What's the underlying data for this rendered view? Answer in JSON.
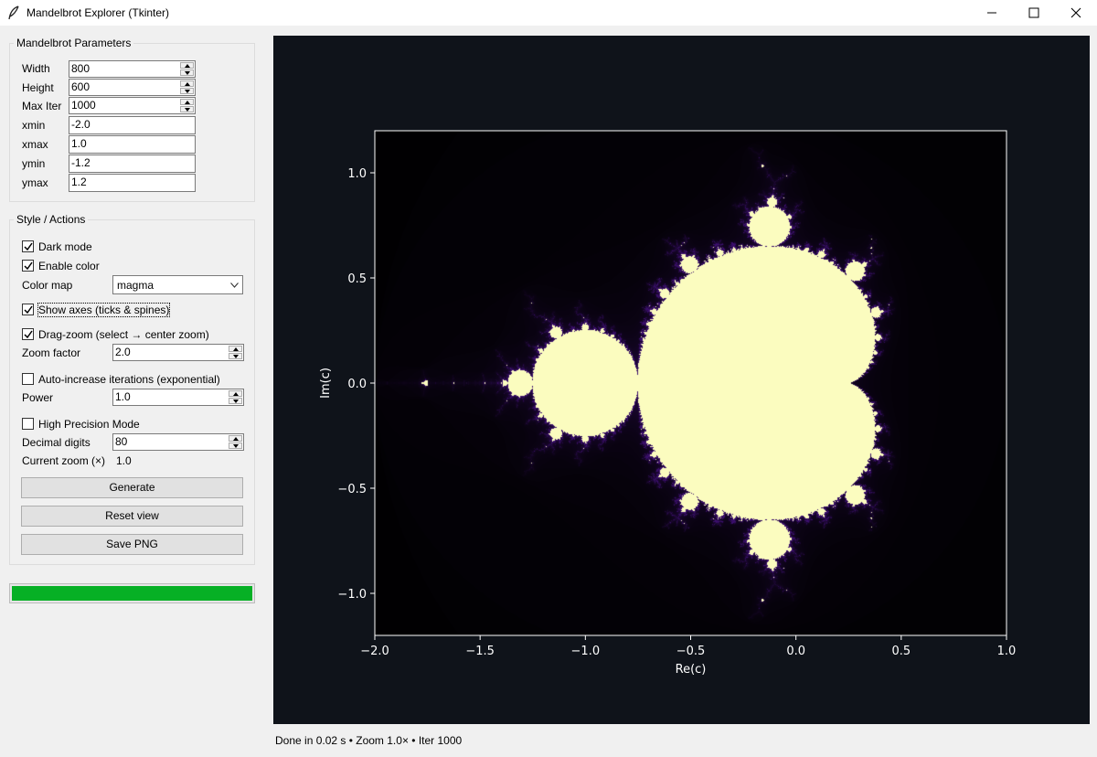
{
  "window": {
    "title": "Mandelbrot Explorer (Tkinter)",
    "icon": "feather-icon",
    "controls": [
      "minimize-icon",
      "maximize-icon",
      "close-icon"
    ]
  },
  "params": {
    "group_title": "Mandelbrot Parameters",
    "width": {
      "label": "Width",
      "value": "800"
    },
    "height": {
      "label": "Height",
      "value": "600"
    },
    "max_iter": {
      "label": "Max Iter",
      "value": "1000"
    },
    "xmin": {
      "label": "xmin",
      "value": "-2.0"
    },
    "xmax": {
      "label": "xmax",
      "value": "1.0"
    },
    "ymin": {
      "label": "ymin",
      "value": "-1.2"
    },
    "ymax": {
      "label": "ymax",
      "value": "1.2"
    }
  },
  "style": {
    "group_title": "Style / Actions",
    "dark_mode": {
      "label": "Dark mode",
      "checked": true
    },
    "enable_color": {
      "label": "Enable color",
      "checked": true
    },
    "color_map": {
      "label": "Color map",
      "value": "magma"
    },
    "show_axes": {
      "label": "Show axes (ticks & spines)",
      "checked": true
    },
    "drag_zoom": {
      "label": "Drag-zoom (select → center zoom)",
      "checked": true
    },
    "zoom_factor": {
      "label": "Zoom factor",
      "value": "2.0"
    },
    "auto_iter": {
      "label": "Auto-increase iterations (exponential)",
      "checked": false
    },
    "power": {
      "label": "Power",
      "value": "1.0"
    },
    "high_precision": {
      "label": "High Precision Mode",
      "checked": false
    },
    "decimal_digits": {
      "label": "Decimal digits",
      "value": "80"
    },
    "current_zoom": {
      "label": "Current zoom (×)",
      "value": "1.0"
    },
    "generate_label": "Generate",
    "reset_label": "Reset view",
    "save_label": "Save PNG"
  },
  "progress": {
    "fraction": 1.0,
    "color": "#06b025"
  },
  "chart_data": {
    "type": "heatmap",
    "xlabel": "Re(c)",
    "ylabel": "Im(c)",
    "xlim": [
      -2.0,
      1.0
    ],
    "ylim": [
      -1.2,
      1.2
    ],
    "xticks": [
      -2.0,
      -1.5,
      -1.0,
      -0.5,
      0.0,
      0.5,
      1.0
    ],
    "xtick_labels": [
      "−2.0",
      "−1.5",
      "−1.0",
      "−0.5",
      "0.0",
      "0.5",
      "1.0"
    ],
    "yticks": [
      -1.0,
      -0.5,
      0.0,
      0.5,
      1.0
    ],
    "ytick_labels": [
      "−1.0",
      "−0.5",
      "0.0",
      "0.5",
      "1.0"
    ],
    "colors": {
      "background": "#0f131a",
      "set": "#fbfcbf",
      "exterior": "#000004",
      "spine": "#ffffff"
    },
    "grid": false
  },
  "status": {
    "text": "Done in 0.02 s • Zoom 1.0× • Iter 1000"
  }
}
